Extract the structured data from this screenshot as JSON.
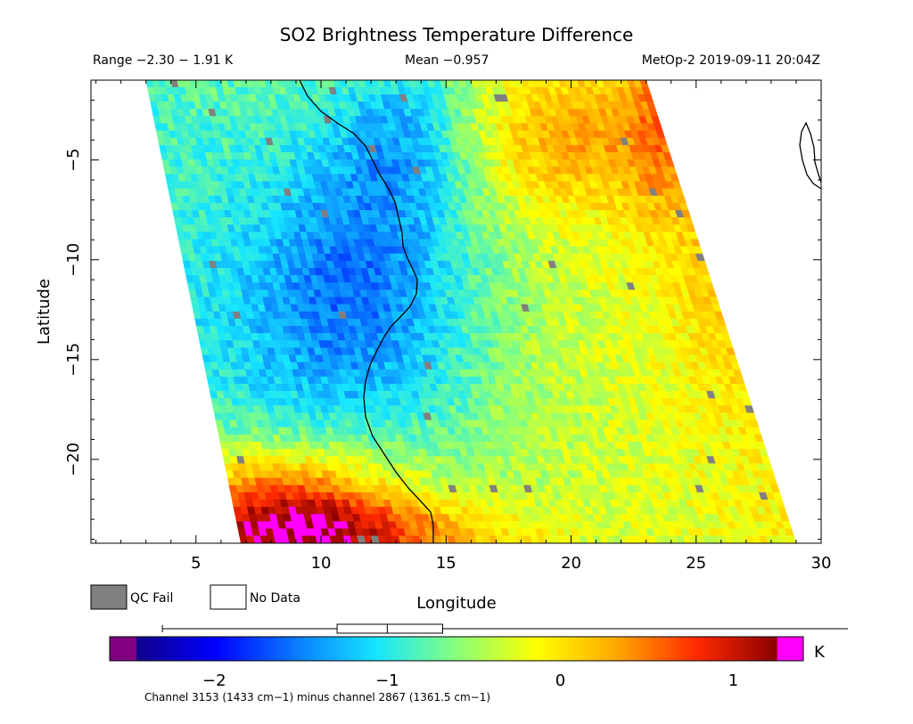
{
  "chart_data": {
    "type": "heatmap",
    "title": "SO2 Brightness Temperature Difference",
    "header": {
      "range": "Range −2.30 − 1.91 K",
      "mean": "Mean −0.957",
      "source": "MetOp-2 2019-09-11 20:04Z"
    },
    "xlabel": "Longitude",
    "ylabel": "Latitude",
    "xlim": [
      0.8,
      30
    ],
    "ylim": [
      -24.2,
      -1
    ],
    "x_ticks": [
      5,
      10,
      15,
      20,
      25,
      30
    ],
    "x_tick_labels": [
      "5",
      "10",
      "15",
      "20",
      "25",
      "30"
    ],
    "y_ticks": [
      -5,
      -10,
      -15,
      -20
    ],
    "y_tick_labels": [
      "−5",
      "−10",
      "−15",
      "−20"
    ],
    "swath": {
      "description": "satellite swath of brightness temperature difference values",
      "corners_lon_lat": {
        "top_left": [
          3.0,
          -1.0
        ],
        "top_right": [
          23.0,
          -1.0
        ],
        "bottom_left": [
          6.8,
          -24.2
        ],
        "bottom_right": [
          29.0,
          -24.2
        ]
      }
    },
    "colorbar": {
      "min": -2.45,
      "max": 1.25,
      "ticks": [
        -2,
        -1,
        0,
        1
      ],
      "tick_labels": [
        "−2",
        "−1",
        "0",
        "1"
      ],
      "unit": "K",
      "underflow_color": "#800080",
      "overflow_color": "#ff00ff",
      "stops": [
        "#10008a",
        "#0000ff",
        "#0a7cff",
        "#16e6ff",
        "#88ff7a",
        "#ffff00",
        "#ffa800",
        "#ff2a00",
        "#8b0000"
      ],
      "box_whisker": {
        "min": -2.3,
        "q1": -1.29,
        "median": -1.0,
        "q3": -0.68,
        "max": 1.91
      },
      "caption": "Channel 3153 (1433 cm−1) minus channel 2867 (1361.5 cm−1)"
    },
    "legend": [
      {
        "label": "QC Fail",
        "color": "#808080"
      },
      {
        "label": "No Data",
        "color": "#ffffff"
      }
    ]
  }
}
